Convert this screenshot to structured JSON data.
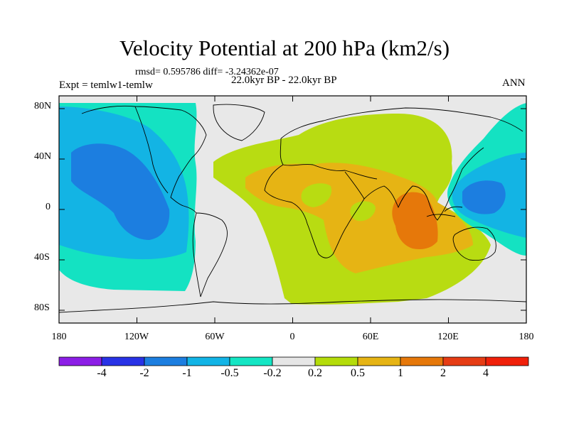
{
  "title": "Velocity Potential at 200 hPa (km2/s)",
  "stats_line": "rmsd= 0.595786 diff= -3.24362e-07",
  "period_line": "22.0kyr BP - 22.0kyr BP",
  "experiment_line": "Expt = temlw1-temlw",
  "season": "ANN",
  "map": {
    "projection": "cylindrical-equidistant",
    "lon_range": [
      -180,
      180
    ],
    "lat_range": [
      -90,
      90
    ],
    "y_ticks": [
      "80N",
      "40N",
      "0",
      "40S",
      "80S"
    ],
    "x_ticks": [
      "180",
      "120W",
      "60W",
      "0",
      "60E",
      "120E",
      "180"
    ]
  },
  "colorbar": {
    "labels": [
      "-4",
      "-2",
      "-1",
      "-0.5",
      "-0.2",
      "0.2",
      "0.5",
      "1",
      "2",
      "4"
    ],
    "colors": [
      "#8c1ee6",
      "#2832e6",
      "#1c7ee0",
      "#12b4e6",
      "#14e6c4",
      "#e6e6e6",
      "#b4dc0a",
      "#e6b414",
      "#e6780a",
      "#e63c14",
      "#f0200a"
    ]
  },
  "colors": {
    "ocean_neutral": "#e8e8e8",
    "coast": "#000000"
  }
}
